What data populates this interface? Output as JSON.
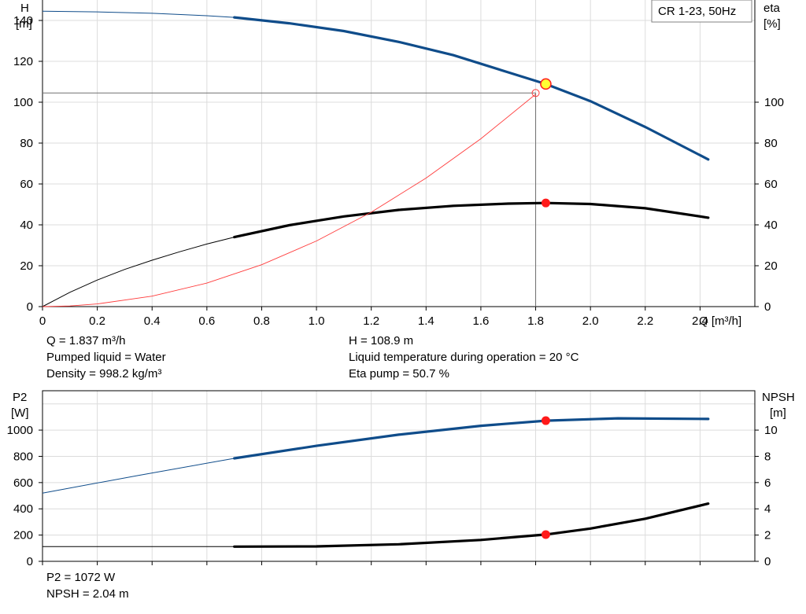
{
  "chart_data": [
    {
      "type": "line",
      "left_axis": {
        "label_line1": "H",
        "label_line2": "[m]",
        "range": [
          0,
          150
        ],
        "ticks": [
          0,
          20,
          40,
          60,
          80,
          100,
          120,
          140
        ]
      },
      "right_axis": {
        "label_line1": "eta",
        "label_line2": "[%]",
        "range": [
          0,
          150
        ],
        "ticks": [
          0,
          20,
          40,
          60,
          80,
          100
        ]
      },
      "x_axis": {
        "label": "Q [m³/h]",
        "range": [
          0,
          2.6
        ],
        "ticks": [
          0,
          0.2,
          0.4,
          0.6,
          0.8,
          1.0,
          1.2,
          1.4,
          1.6,
          1.8,
          2.0,
          2.2,
          2.4
        ],
        "tick_labels": [
          "0",
          "0.2",
          "0.4",
          "0.6",
          "0.8",
          "1.0",
          "1.2",
          "1.4",
          "1.6",
          "1.8",
          "2.0",
          "2.2",
          "2.4"
        ]
      },
      "legend": "CR 1-23, 50Hz",
      "grid": true,
      "series": [
        {
          "axis": "left",
          "color": "#0f4c8a",
          "thin_x": [
            0,
            0.2,
            0.4,
            0.6,
            0.7
          ],
          "thin_y": [
            144.5,
            144.2,
            143.5,
            142.3,
            141.5
          ],
          "thick_x": [
            0.7,
            0.9,
            1.1,
            1.3,
            1.5,
            1.7,
            1.837,
            2.0,
            2.2,
            2.43
          ],
          "thick_y": [
            141.5,
            138.6,
            134.8,
            129.5,
            123.0,
            114.6,
            108.9,
            100.5,
            87.9,
            72.0
          ]
        },
        {
          "axis": "right",
          "color": "#000000",
          "thin_x": [
            0,
            0.1,
            0.2,
            0.3,
            0.4,
            0.5,
            0.6,
            0.7
          ],
          "thin_y": [
            0,
            7,
            13,
            18.2,
            22.7,
            26.8,
            30.6,
            34.0
          ],
          "thick_x": [
            0.7,
            0.9,
            1.1,
            1.3,
            1.5,
            1.7,
            1.837,
            2.0,
            2.2,
            2.43
          ],
          "thick_y": [
            34.0,
            39.8,
            44.1,
            47.3,
            49.3,
            50.4,
            50.7,
            50.2,
            48.1,
            43.5
          ]
        },
        {
          "axis": "left",
          "color": "#ff3b3b",
          "x": [
            0,
            0.1,
            0.2,
            0.4,
            0.6,
            0.8,
            1.0,
            1.2,
            1.4,
            1.6,
            1.8
          ],
          "y": [
            0,
            0.3,
            1.3,
            5.1,
            11.5,
            20.5,
            32.1,
            46.2,
            62.9,
            82.1,
            103.9
          ]
        }
      ],
      "operating_point": {
        "x": 1.837,
        "y": 108.9,
        "eta": 50.7
      },
      "reference_point": {
        "x": 1.8,
        "y": 104.5
      }
    },
    {
      "type": "line",
      "left_axis": {
        "label_line1": "P2",
        "label_line2": "[W]",
        "range": [
          0,
          1300
        ],
        "ticks": [
          0,
          200,
          400,
          600,
          800,
          1000
        ]
      },
      "right_axis": {
        "label_line1": "NPSH",
        "label_line2": "[m]",
        "range": [
          0,
          13
        ],
        "ticks": [
          0,
          2,
          4,
          6,
          8,
          10
        ]
      },
      "x_axis": {
        "range": [
          0,
          2.6
        ],
        "ticks": [
          0,
          0.2,
          0.4,
          0.6,
          0.8,
          1.0,
          1.2,
          1.4,
          1.6,
          1.8,
          2.0,
          2.2,
          2.4
        ]
      },
      "grid": true,
      "series": [
        {
          "axis": "left",
          "color": "#0f4c8a",
          "thin_x": [
            0,
            0.35,
            0.7
          ],
          "thin_y": [
            520,
            655,
            785
          ],
          "thick_x": [
            0.7,
            1.0,
            1.3,
            1.6,
            1.837,
            2.1,
            2.43
          ],
          "thick_y": [
            785,
            880,
            965,
            1033,
            1072,
            1090,
            1085
          ]
        },
        {
          "axis": "right",
          "color": "#000000",
          "thin_x": [
            0,
            0.35,
            0.7
          ],
          "thin_y": [
            1.12,
            1.12,
            1.12
          ],
          "thick_x": [
            0.7,
            1.0,
            1.3,
            1.6,
            1.837,
            2.0,
            2.2,
            2.43
          ],
          "thick_y": [
            1.12,
            1.14,
            1.3,
            1.63,
            2.04,
            2.5,
            3.25,
            4.4
          ]
        }
      ],
      "operating_point": {
        "x": 1.837,
        "p2": 1072,
        "npsh": 2.04
      }
    }
  ],
  "info": {
    "q": "Q = 1.837 m³/h",
    "h": "H = 108.9 m",
    "liquid": "Pumped liquid = Water",
    "temperature": "Liquid temperature during operation = 20 °C",
    "density": "Density = 998.2 kg/m³",
    "eta": "Eta pump = 50.7 %",
    "p2": "P2 = 1072 W",
    "npsh": "NPSH = 2.04 m"
  }
}
